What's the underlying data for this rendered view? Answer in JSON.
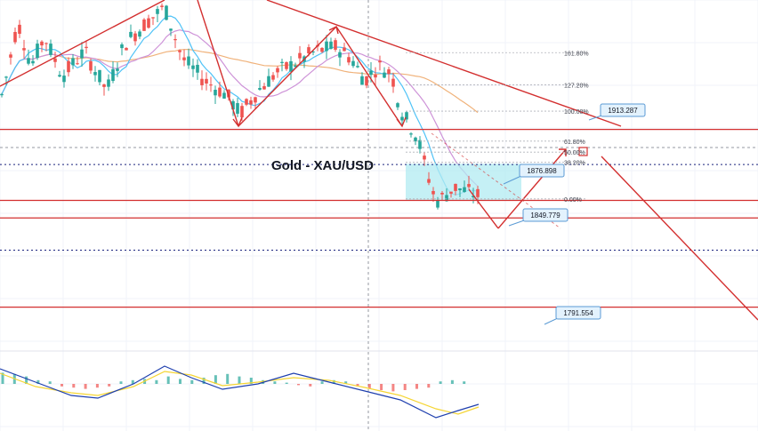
{
  "title": "Gold - XAU/USD",
  "colors": {
    "bull": "#26a69a",
    "bear": "#ef5350",
    "trend": "#d32f2f",
    "ma_fast": "#4fc3f7",
    "ma_mid": "#ce93d8",
    "ma_slow": "#f0b27a",
    "box_fill": "#b2ebf2",
    "callout_fill": "#e3f2fd",
    "callout_stroke": "#5b9bd5",
    "dotted": "#1a237e",
    "macd_line": "#1e3fae",
    "signal_line": "#f5d533"
  },
  "chart_data": {
    "type": "candlestick",
    "title": "Gold - XAU/USD",
    "y_range": [
      1760,
      2000
    ],
    "price_labels": [
      "1913.287",
      "1876.898",
      "1849.779",
      "1791.554"
    ],
    "fib_levels": [
      {
        "label": "161.80%",
        "value": 1964.0
      },
      {
        "label": "127.20%",
        "value": 1942.0
      },
      {
        "label": "100.00%",
        "value": 1924.0
      },
      {
        "label": "61.80%",
        "value": 1903.5
      },
      {
        "label": "50.00%",
        "value": 1896.0
      },
      {
        "label": "38.20%",
        "value": 1889.0
      },
      {
        "label": "0.00%",
        "value": 1864.0
      }
    ],
    "horizontal_levels": [
      {
        "value": 1911.5,
        "style": "solid"
      },
      {
        "value": 1887.5,
        "style": "dotted"
      },
      {
        "value": 1863.0,
        "style": "solid"
      },
      {
        "value": 1851.0,
        "style": "solid"
      },
      {
        "value": 1829.0,
        "style": "dotted"
      },
      {
        "value": 1790.0,
        "style": "solid"
      }
    ],
    "macd_histogram": [
      0.9,
      0.8,
      0.6,
      0.3,
      0.2,
      -0.2,
      -0.3,
      -0.4,
      -0.3,
      -0.2,
      0.2,
      0.3,
      0.4,
      0.3,
      0.6,
      0.4,
      0.3,
      0.5,
      0.7,
      0.8,
      0.6,
      0.5,
      0.3,
      0.2,
      0.1,
      -0.1,
      -0.2,
      0.2,
      0.3,
      0.2,
      -0.2,
      -0.4,
      -0.5,
      -0.6,
      -0.5,
      -0.4,
      -0.3,
      0.2,
      0.3,
      0.2
    ]
  }
}
